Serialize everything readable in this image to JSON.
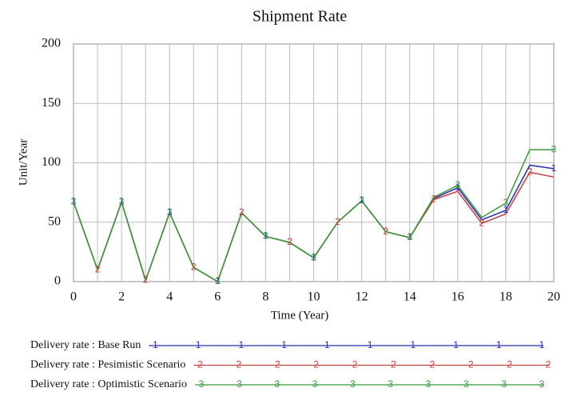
{
  "chart_data": {
    "type": "line",
    "title": "Shipment Rate",
    "x_label": "Time (Year)",
    "y_label": "Unit/Year",
    "x": [
      0,
      1,
      2,
      3,
      4,
      5,
      6,
      7,
      8,
      9,
      10,
      11,
      12,
      13,
      14,
      15,
      16,
      17,
      18,
      19,
      20
    ],
    "series": [
      {
        "name": "Delivery rate : Base Run",
        "marker": "1",
        "color": "#2b2bb0",
        "values": [
          67,
          10,
          67,
          1,
          58,
          12,
          0,
          58,
          38,
          33,
          20,
          50,
          68,
          42,
          37,
          70,
          79,
          52,
          60,
          98,
          95
        ]
      },
      {
        "name": "Delivery rate : Pesimistic Scenario",
        "marker": "2",
        "color": "#c04040",
        "values": [
          67,
          10,
          67,
          1,
          58,
          12,
          0,
          58,
          38,
          33,
          20,
          50,
          68,
          42,
          37,
          69,
          76,
          49,
          57,
          92,
          88
        ]
      },
      {
        "name": "Delivery rate : Optimistic Scenario",
        "marker": "3",
        "color": "#3a9a3a",
        "values": [
          67,
          10,
          67,
          1,
          58,
          12,
          0,
          58,
          38,
          33,
          20,
          50,
          68,
          42,
          37,
          71,
          81,
          54,
          66,
          111,
          111
        ]
      }
    ],
    "xlim": [
      0,
      20
    ],
    "xticks": [
      0,
      2,
      4,
      6,
      8,
      10,
      12,
      14,
      16,
      18,
      20
    ],
    "xgrid": [
      0,
      1,
      2,
      3,
      4,
      5,
      6,
      7,
      8,
      9,
      10,
      11,
      12,
      13,
      14,
      15,
      16,
      17,
      18,
      19,
      20
    ],
    "ylim": [
      0,
      200
    ],
    "yticks": [
      0,
      50,
      100,
      150,
      200
    ],
    "grid": true
  }
}
